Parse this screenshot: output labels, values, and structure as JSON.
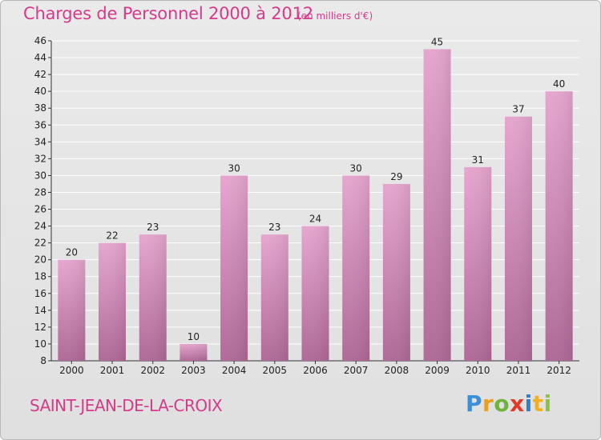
{
  "header": {
    "title": "Charges de Personnel 2000 à 2012",
    "unit": "(en milliers d'€)"
  },
  "footer": {
    "commune": "SAINT-JEAN-DE-LA-CROIX",
    "logo": "Proxiti"
  },
  "chart_data": {
    "type": "bar",
    "title": "Charges de Personnel 2000 à 2012",
    "subtitle": "(en milliers d'€)",
    "xlabel": "",
    "ylabel": "",
    "categories": [
      "2000",
      "2001",
      "2002",
      "2003",
      "2004",
      "2005",
      "2006",
      "2007",
      "2008",
      "2009",
      "2010",
      "2011",
      "2012"
    ],
    "values": [
      20,
      22,
      23,
      10,
      30,
      23,
      24,
      30,
      29,
      45,
      31,
      37,
      40
    ],
    "ylim": [
      8,
      46
    ],
    "yticks": [
      8,
      10,
      12,
      14,
      16,
      18,
      20,
      22,
      24,
      26,
      28,
      30,
      32,
      34,
      36,
      38,
      40,
      42,
      44,
      46
    ],
    "grid": true,
    "bar_color": "#d07aae"
  }
}
